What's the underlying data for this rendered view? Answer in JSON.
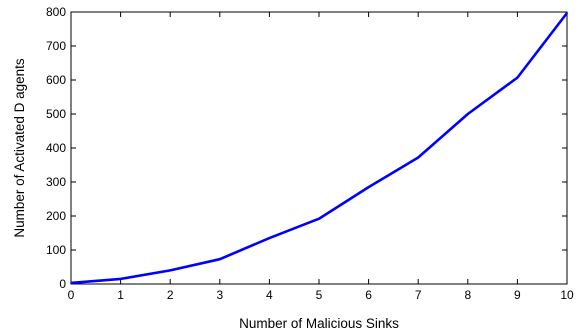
{
  "chart_data": {
    "type": "line",
    "title": "",
    "xlabel": "Number of Malicious Sinks",
    "ylabel": "Number of Activated D agents",
    "xlim": [
      0,
      10
    ],
    "ylim": [
      0,
      800
    ],
    "x_ticks": [
      "0",
      "1",
      "2",
      "3",
      "4",
      "5",
      "6",
      "7",
      "8",
      "9",
      "10"
    ],
    "y_ticks": [
      "0",
      "100",
      "200",
      "300",
      "400",
      "500",
      "600",
      "700",
      "800"
    ],
    "grid": false,
    "legend": "none",
    "series": [
      {
        "color": "#0000ff",
        "x": [
          0,
          1,
          2,
          3,
          4,
          5,
          6,
          7,
          8,
          9,
          10
        ],
        "y": [
          3,
          15,
          40,
          73,
          135,
          192,
          285,
          372,
          500,
          607,
          797
        ]
      }
    ]
  }
}
